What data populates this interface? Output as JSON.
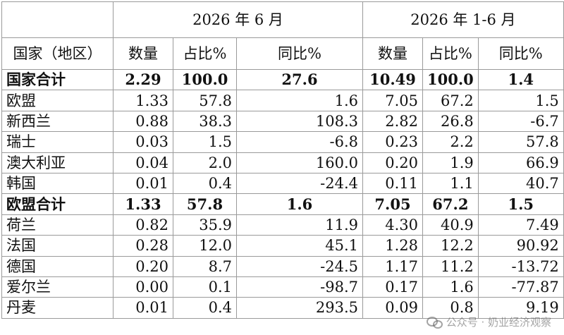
{
  "header": {
    "period_month": "2026 年 6 月",
    "period_ytd": "2026 年 1-6 月",
    "col_region": "国家（地区）",
    "col_qty": "数量",
    "col_share": "占比%",
    "col_yoy": "同比%"
  },
  "rows": [
    {
      "name": "国家合计",
      "m_qty": "2.29",
      "m_share": "100.0",
      "m_yoy": "27.6",
      "y_qty": "10.49",
      "y_share": "100.0",
      "y_yoy": "1.4",
      "total": true
    },
    {
      "name": "欧盟",
      "m_qty": "1.33",
      "m_share": "57.8",
      "m_yoy": "1.6",
      "y_qty": "7.05",
      "y_share": "67.2",
      "y_yoy": "1.5"
    },
    {
      "name": "新西兰",
      "m_qty": "0.88",
      "m_share": "38.3",
      "m_yoy": "108.3",
      "y_qty": "2.82",
      "y_share": "26.8",
      "y_yoy": "-6.7"
    },
    {
      "name": "瑞士",
      "m_qty": "0.03",
      "m_share": "1.5",
      "m_yoy": "-6.8",
      "y_qty": "0.23",
      "y_share": "2.2",
      "y_yoy": "57.8"
    },
    {
      "name": "澳大利亚",
      "m_qty": "0.04",
      "m_share": "2.0",
      "m_yoy": "160.0",
      "y_qty": "0.20",
      "y_share": "1.9",
      "y_yoy": "66.9"
    },
    {
      "name": "韩国",
      "m_qty": "0.01",
      "m_share": "0.4",
      "m_yoy": "-24.4",
      "y_qty": "0.11",
      "y_share": "1.1",
      "y_yoy": "40.7"
    },
    {
      "name": "欧盟合计",
      "m_qty": "1.33",
      "m_share": "57.8",
      "m_yoy": "1.6",
      "y_qty": "7.05",
      "y_share": "67.2",
      "y_yoy": "1.5",
      "total": true
    },
    {
      "name": "荷兰",
      "m_qty": "0.82",
      "m_share": "35.9",
      "m_yoy": "11.9",
      "y_qty": "4.30",
      "y_share": "40.9",
      "y_yoy": "7.49"
    },
    {
      "name": "法国",
      "m_qty": "0.28",
      "m_share": "12.0",
      "m_yoy": "45.1",
      "y_qty": "1.28",
      "y_share": "12.2",
      "y_yoy": "90.92"
    },
    {
      "name": "德国",
      "m_qty": "0.20",
      "m_share": "8.7",
      "m_yoy": "-24.5",
      "y_qty": "1.17",
      "y_share": "11.2",
      "y_yoy": "-13.72"
    },
    {
      "name": "爱尔兰",
      "m_qty": "0.00",
      "m_share": "0.1",
      "m_yoy": "-98.7",
      "y_qty": "0.17",
      "y_share": "1.6",
      "y_yoy": "-77.87"
    },
    {
      "name": "丹麦",
      "m_qty": "0.01",
      "m_share": "0.4",
      "m_yoy": "293.5",
      "y_qty": "0.09",
      "y_share": "0.8",
      "y_yoy": "9.19"
    }
  ],
  "watermark": {
    "text": "公众号 · 奶业经济观察",
    "icon": "wechat-icon"
  }
}
